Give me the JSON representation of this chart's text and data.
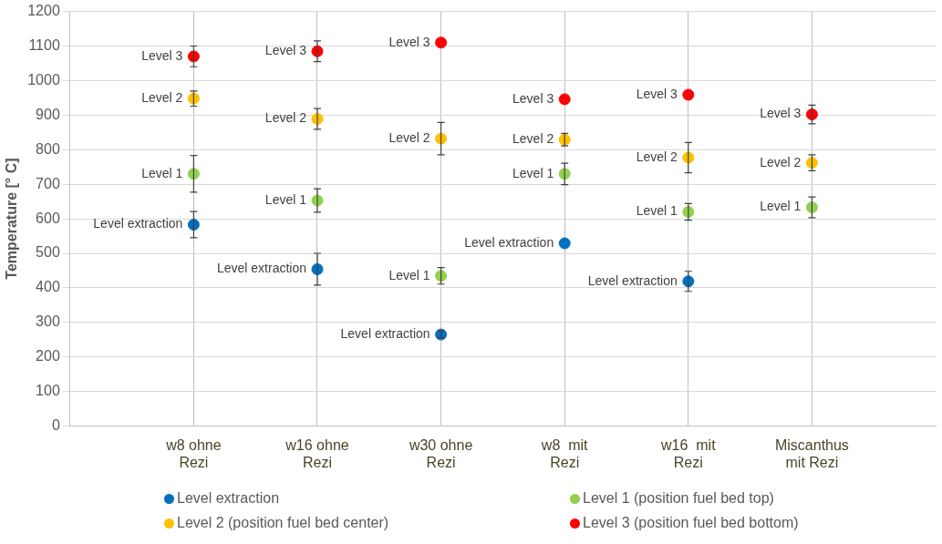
{
  "chart_data": {
    "type": "scatter",
    "ylabel": "Temperature [° C]",
    "categories": [
      "w8 ohne Rezi",
      "w16 ohne Rezi",
      "w30 ohne Rezi",
      "w8  mit Rezi",
      "w16  mit Rezi",
      "Miscanthus mit Rezi"
    ],
    "series": [
      {
        "name": "Level extraction",
        "color": "#0070c0",
        "values": [
          583,
          454,
          265,
          529,
          419,
          null
        ],
        "errors": [
          38,
          46,
          10,
          null,
          29,
          null
        ]
      },
      {
        "name": "Level 1 (position fuel bed top)",
        "color": "#92d050",
        "values": [
          730,
          653,
          435,
          730,
          620,
          633
        ],
        "errors": [
          53,
          34,
          24,
          31,
          24,
          30
        ]
      },
      {
        "name": "Level 2 (position fuel bed center)",
        "color": "#ffc000",
        "values": [
          948,
          889,
          832,
          829,
          777,
          762
        ],
        "errors": [
          22,
          30,
          47,
          18,
          44,
          23
        ]
      },
      {
        "name": "Level 3 (position fuel bed bottom)",
        "color": "#ff0000",
        "values": [
          1070,
          1085,
          1110,
          946,
          959,
          902
        ],
        "errors": [
          30,
          30,
          null,
          null,
          null,
          27
        ]
      }
    ],
    "ylim": [
      0,
      1200
    ],
    "yticks": [
      0,
      100,
      200,
      300,
      400,
      500,
      600,
      700,
      800,
      900,
      1000,
      1100,
      1200
    ],
    "grid": true,
    "legend": "bottom",
    "marker": "circle",
    "annotations": [
      {
        "text": "Level extraction",
        "x": "w8 ohne Rezi",
        "y": 583
      },
      {
        "text": "Level 1",
        "x": "w8 ohne Rezi",
        "y": 730
      },
      {
        "text": "Level 2",
        "x": "w8 ohne Rezi",
        "y": 948
      },
      {
        "text": "Level 3",
        "x": "w8 ohne Rezi",
        "y": 1070
      },
      {
        "text": "Level extraction",
        "x": "w16 ohne Rezi",
        "y": 454
      },
      {
        "text": "Level 1",
        "x": "w16 ohne Rezi",
        "y": 653
      },
      {
        "text": "Level 2",
        "x": "w16 ohne Rezi",
        "y": 889
      },
      {
        "text": "Level 3",
        "x": "w16 ohne Rezi",
        "y": 1085
      },
      {
        "text": "Level extraction",
        "x": "w30 ohne Rezi",
        "y": 265
      },
      {
        "text": "Level 1",
        "x": "w30 ohne Rezi",
        "y": 435
      },
      {
        "text": "Level 2",
        "x": "w30 ohne Rezi",
        "y": 832
      },
      {
        "text": "Level 3",
        "x": "w30 ohne Rezi",
        "y": 1110
      },
      {
        "text": "Level extraction",
        "x": "w8  mit Rezi",
        "y": 529
      },
      {
        "text": "Level 1",
        "x": "w8  mit Rezi",
        "y": 730
      },
      {
        "text": "Level 2",
        "x": "w8  mit Rezi",
        "y": 829
      },
      {
        "text": "Level 3",
        "x": "w8  mit Rezi",
        "y": 946
      },
      {
        "text": "Level extraction",
        "x": "w16  mit Rezi",
        "y": 419
      },
      {
        "text": "Level 1",
        "x": "w16  mit Rezi",
        "y": 620
      },
      {
        "text": "Level 2",
        "x": "w16  mit Rezi",
        "y": 777
      },
      {
        "text": "Level 3",
        "x": "w16  mit Rezi",
        "y": 959
      },
      {
        "text": "Level 1",
        "x": "Miscanthus mit Rezi",
        "y": 633
      },
      {
        "text": "Level 2",
        "x": "Miscanthus mit Rezi",
        "y": 762
      },
      {
        "text": "Level 3",
        "x": "Miscanthus mit Rezi",
        "y": 902
      }
    ]
  }
}
